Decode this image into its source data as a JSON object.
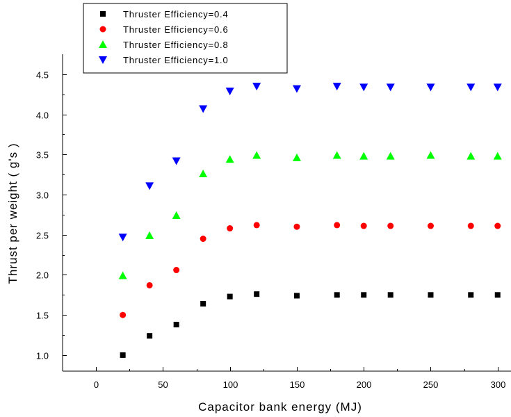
{
  "chart_data": {
    "type": "scatter",
    "title": "",
    "xlabel": "Capacitor bank energy (MJ)",
    "ylabel": "Thrust per weight ( g's )",
    "xlim": [
      -25,
      310
    ],
    "ylim": [
      0.8,
      4.75
    ],
    "x_ticks": [
      0,
      50,
      100,
      150,
      200,
      250,
      300
    ],
    "y_ticks": [
      1.0,
      1.5,
      2.0,
      2.5,
      3.0,
      3.5,
      4.0,
      4.5
    ],
    "grid": false,
    "legend_position": "top-left",
    "x": [
      20,
      40,
      60,
      80,
      100,
      120,
      150,
      180,
      200,
      220,
      250,
      280,
      300
    ],
    "series": [
      {
        "name": "Thruster Efficiency=0.4",
        "marker": "square",
        "color": "#000000",
        "values": [
          1.0,
          1.24,
          1.38,
          1.64,
          1.73,
          1.76,
          1.74,
          1.75,
          1.75,
          1.75,
          1.75,
          1.75,
          1.75
        ]
      },
      {
        "name": "Thruster Efficiency=0.6",
        "marker": "circle",
        "color": "#ff0000",
        "values": [
          1.5,
          1.87,
          2.06,
          2.45,
          2.58,
          2.62,
          2.6,
          2.62,
          2.61,
          2.61,
          2.61,
          2.61,
          2.61
        ]
      },
      {
        "name": "Thruster Efficiency=0.8",
        "marker": "triangle-up",
        "color": "#00ff00",
        "values": [
          1.99,
          2.49,
          2.74,
          3.26,
          3.44,
          3.49,
          3.46,
          3.49,
          3.48,
          3.48,
          3.49,
          3.48,
          3.48
        ]
      },
      {
        "name": "Thruster Efficiency=1.0",
        "marker": "triangle-down",
        "color": "#0000ff",
        "values": [
          2.47,
          3.11,
          3.42,
          4.07,
          4.29,
          4.35,
          4.32,
          4.35,
          4.34,
          4.34,
          4.34,
          4.34,
          4.34
        ]
      }
    ]
  }
}
